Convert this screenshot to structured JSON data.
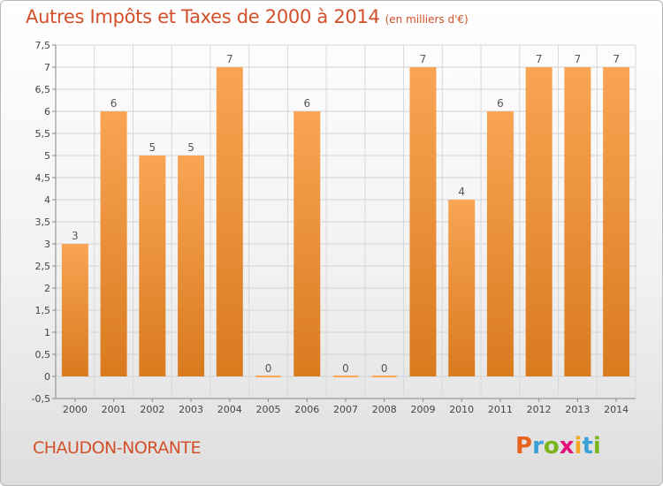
{
  "header": {
    "title": "Autres Impôts et Taxes de 2000 à 2014",
    "subtitle": "(en milliers d'€)"
  },
  "footer": {
    "commune": "CHAUDON-NORANTE",
    "logo_letters": [
      "P",
      "r",
      "o",
      "x",
      "i",
      "t",
      "i"
    ],
    "logo_colors": [
      "#e8641e",
      "#3aa0d8",
      "#7ab51d",
      "#e2127a",
      "#f5a623",
      "#3aa0d8",
      "#7ab51d"
    ]
  },
  "chart_data": {
    "type": "bar",
    "categories": [
      "2000",
      "2001",
      "2002",
      "2003",
      "2004",
      "2005",
      "2006",
      "2007",
      "2008",
      "2009",
      "2010",
      "2011",
      "2012",
      "2013",
      "2014"
    ],
    "values": [
      3,
      6,
      5,
      5,
      7,
      0,
      6,
      0,
      0,
      7,
      4,
      6,
      7,
      7,
      7
    ],
    "data_labels": [
      "3",
      "6",
      "5",
      "5",
      "7",
      "0",
      "6",
      "0",
      "0",
      "7",
      "4",
      "6",
      "7",
      "7",
      "7"
    ],
    "yticks": [
      "-0,5",
      "0",
      "0,5",
      "1",
      "1,5",
      "2",
      "2,5",
      "3",
      "3,5",
      "4",
      "4,5",
      "5",
      "5,5",
      "6",
      "6,5",
      "7",
      "7,5"
    ],
    "ytick_values": [
      -0.5,
      0,
      0.5,
      1,
      1.5,
      2,
      2.5,
      3,
      3.5,
      4,
      4.5,
      5,
      5.5,
      6,
      6.5,
      7,
      7.5
    ],
    "ylim": [
      -0.5,
      7.5
    ],
    "grid": true,
    "bar_color_top": "#f9a554",
    "bar_color_bottom": "#d97a1e"
  }
}
